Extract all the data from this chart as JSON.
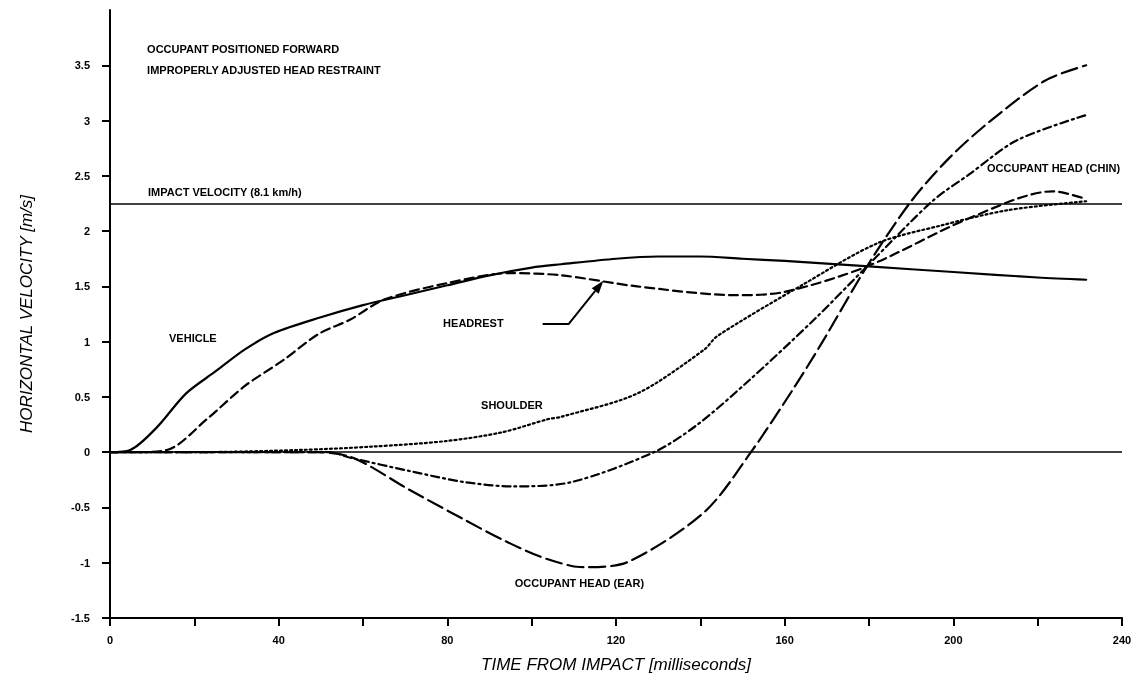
{
  "chart_data": {
    "type": "line",
    "xlabel": "TIME FROM IMPACT [milliseconds]",
    "ylabel": "HORIZONTAL VELOCITY [m/s]",
    "xlim": [
      0,
      240
    ],
    "ylim": [
      -1.5,
      4
    ],
    "xticks": [
      0,
      {
        "value": 20,
        "label": null
      },
      40,
      {
        "value": 60,
        "label": null
      },
      80,
      {
        "value": 100,
        "label": null
      },
      120,
      {
        "value": 140,
        "label": null
      },
      160,
      {
        "value": 180,
        "label": null
      },
      200,
      {
        "value": 220,
        "label": null
      },
      240
    ],
    "yticks": [
      -1.5,
      -1,
      -0.5,
      0,
      0.5,
      1,
      1.5,
      2,
      2.5,
      3,
      3.5
    ],
    "grid": false,
    "legend": false,
    "marker": "none",
    "annotations": [
      "OCCUPANT POSITIONED FORWARD",
      "IMPROPERLY ADJUSTED HEAD RESTRAINT"
    ],
    "ref_lines": [
      {
        "axis": "y",
        "value": 2.25,
        "label": "IMPACT VELOCITY (8.1 km/h)",
        "color": "#000000"
      },
      {
        "axis": "y",
        "value": 0,
        "label": null,
        "color": "#000000"
      }
    ],
    "series": [
      {
        "name": "VEHICLE",
        "color": "#000000",
        "line_style": "solid",
        "x": [
          0,
          4.8,
          11,
          18,
          25,
          32,
          39,
          50,
          60,
          70,
          80,
          90,
          100,
          107,
          120,
          130,
          140,
          150,
          160,
          180,
          200,
          220,
          231.5
        ],
        "values": [
          0,
          0.02,
          0.22,
          0.53,
          0.73,
          0.93,
          1.08,
          1.22,
          1.33,
          1.42,
          1.51,
          1.6,
          1.67,
          1.7,
          1.75,
          1.77,
          1.77,
          1.75,
          1.73,
          1.68,
          1.63,
          1.58,
          1.56
        ]
      },
      {
        "name": "HEADREST",
        "color": "#000000",
        "line_style": "dashed",
        "x": [
          0,
          5,
          13.5,
          23,
          32,
          41,
          49.5,
          57,
          65,
          80,
          95,
          107,
          125,
          148.6,
          160,
          179.5,
          204,
          223.6,
          231.5
        ],
        "values": [
          0,
          0,
          0.02,
          0.3,
          0.6,
          0.83,
          1.07,
          1.2,
          1.38,
          1.53,
          1.62,
          1.6,
          1.5,
          1.42,
          1.45,
          1.68,
          2.12,
          2.36,
          2.29
        ]
      },
      {
        "name": "SHOULDER",
        "color": "#000000",
        "line_style": "dotted",
        "x": [
          0,
          20,
          45,
          62,
          79.6,
          93,
          104,
          107,
          125,
          141,
          144,
          164.5,
          182,
          197,
          213,
          231.5
        ],
        "values": [
          0,
          0,
          0.02,
          0.05,
          0.1,
          0.18,
          0.3,
          0.32,
          0.53,
          0.93,
          1.05,
          1.52,
          1.89,
          2.05,
          2.19,
          2.27
        ]
      },
      {
        "name": "OCCUPANT HEAD (CHIN)",
        "color": "#000000",
        "line_style": "dashdot",
        "x": [
          0,
          20,
          52,
          57,
          71,
          84,
          95.5,
          109.5,
          129,
          139,
          151,
          167,
          179.5,
          195,
          204,
          215,
          231.5
        ],
        "values": [
          0,
          0,
          0,
          -0.05,
          -0.17,
          -0.27,
          -0.31,
          -0.27,
          0,
          0.24,
          0.63,
          1.2,
          1.68,
          2.27,
          2.52,
          2.82,
          3.05
        ]
      },
      {
        "name": "OCCUPANT HEAD (EAR)",
        "color": "#000000",
        "line_style": "longdash",
        "x": [
          0,
          20,
          49,
          57.6,
          71,
          84,
          93,
          101.7,
          109.5,
          113,
          123,
          141,
          152,
          162,
          169,
          179.5,
          190,
          199,
          208.6,
          221.7,
          231.5
        ],
        "values": [
          0,
          0,
          0,
          -0.05,
          -0.34,
          -0.61,
          -0.79,
          -0.94,
          -1.03,
          -1.04,
          -0.99,
          -0.54,
          0,
          0.57,
          1.0,
          1.68,
          2.27,
          2.66,
          2.99,
          3.36,
          3.5
        ]
      }
    ]
  }
}
